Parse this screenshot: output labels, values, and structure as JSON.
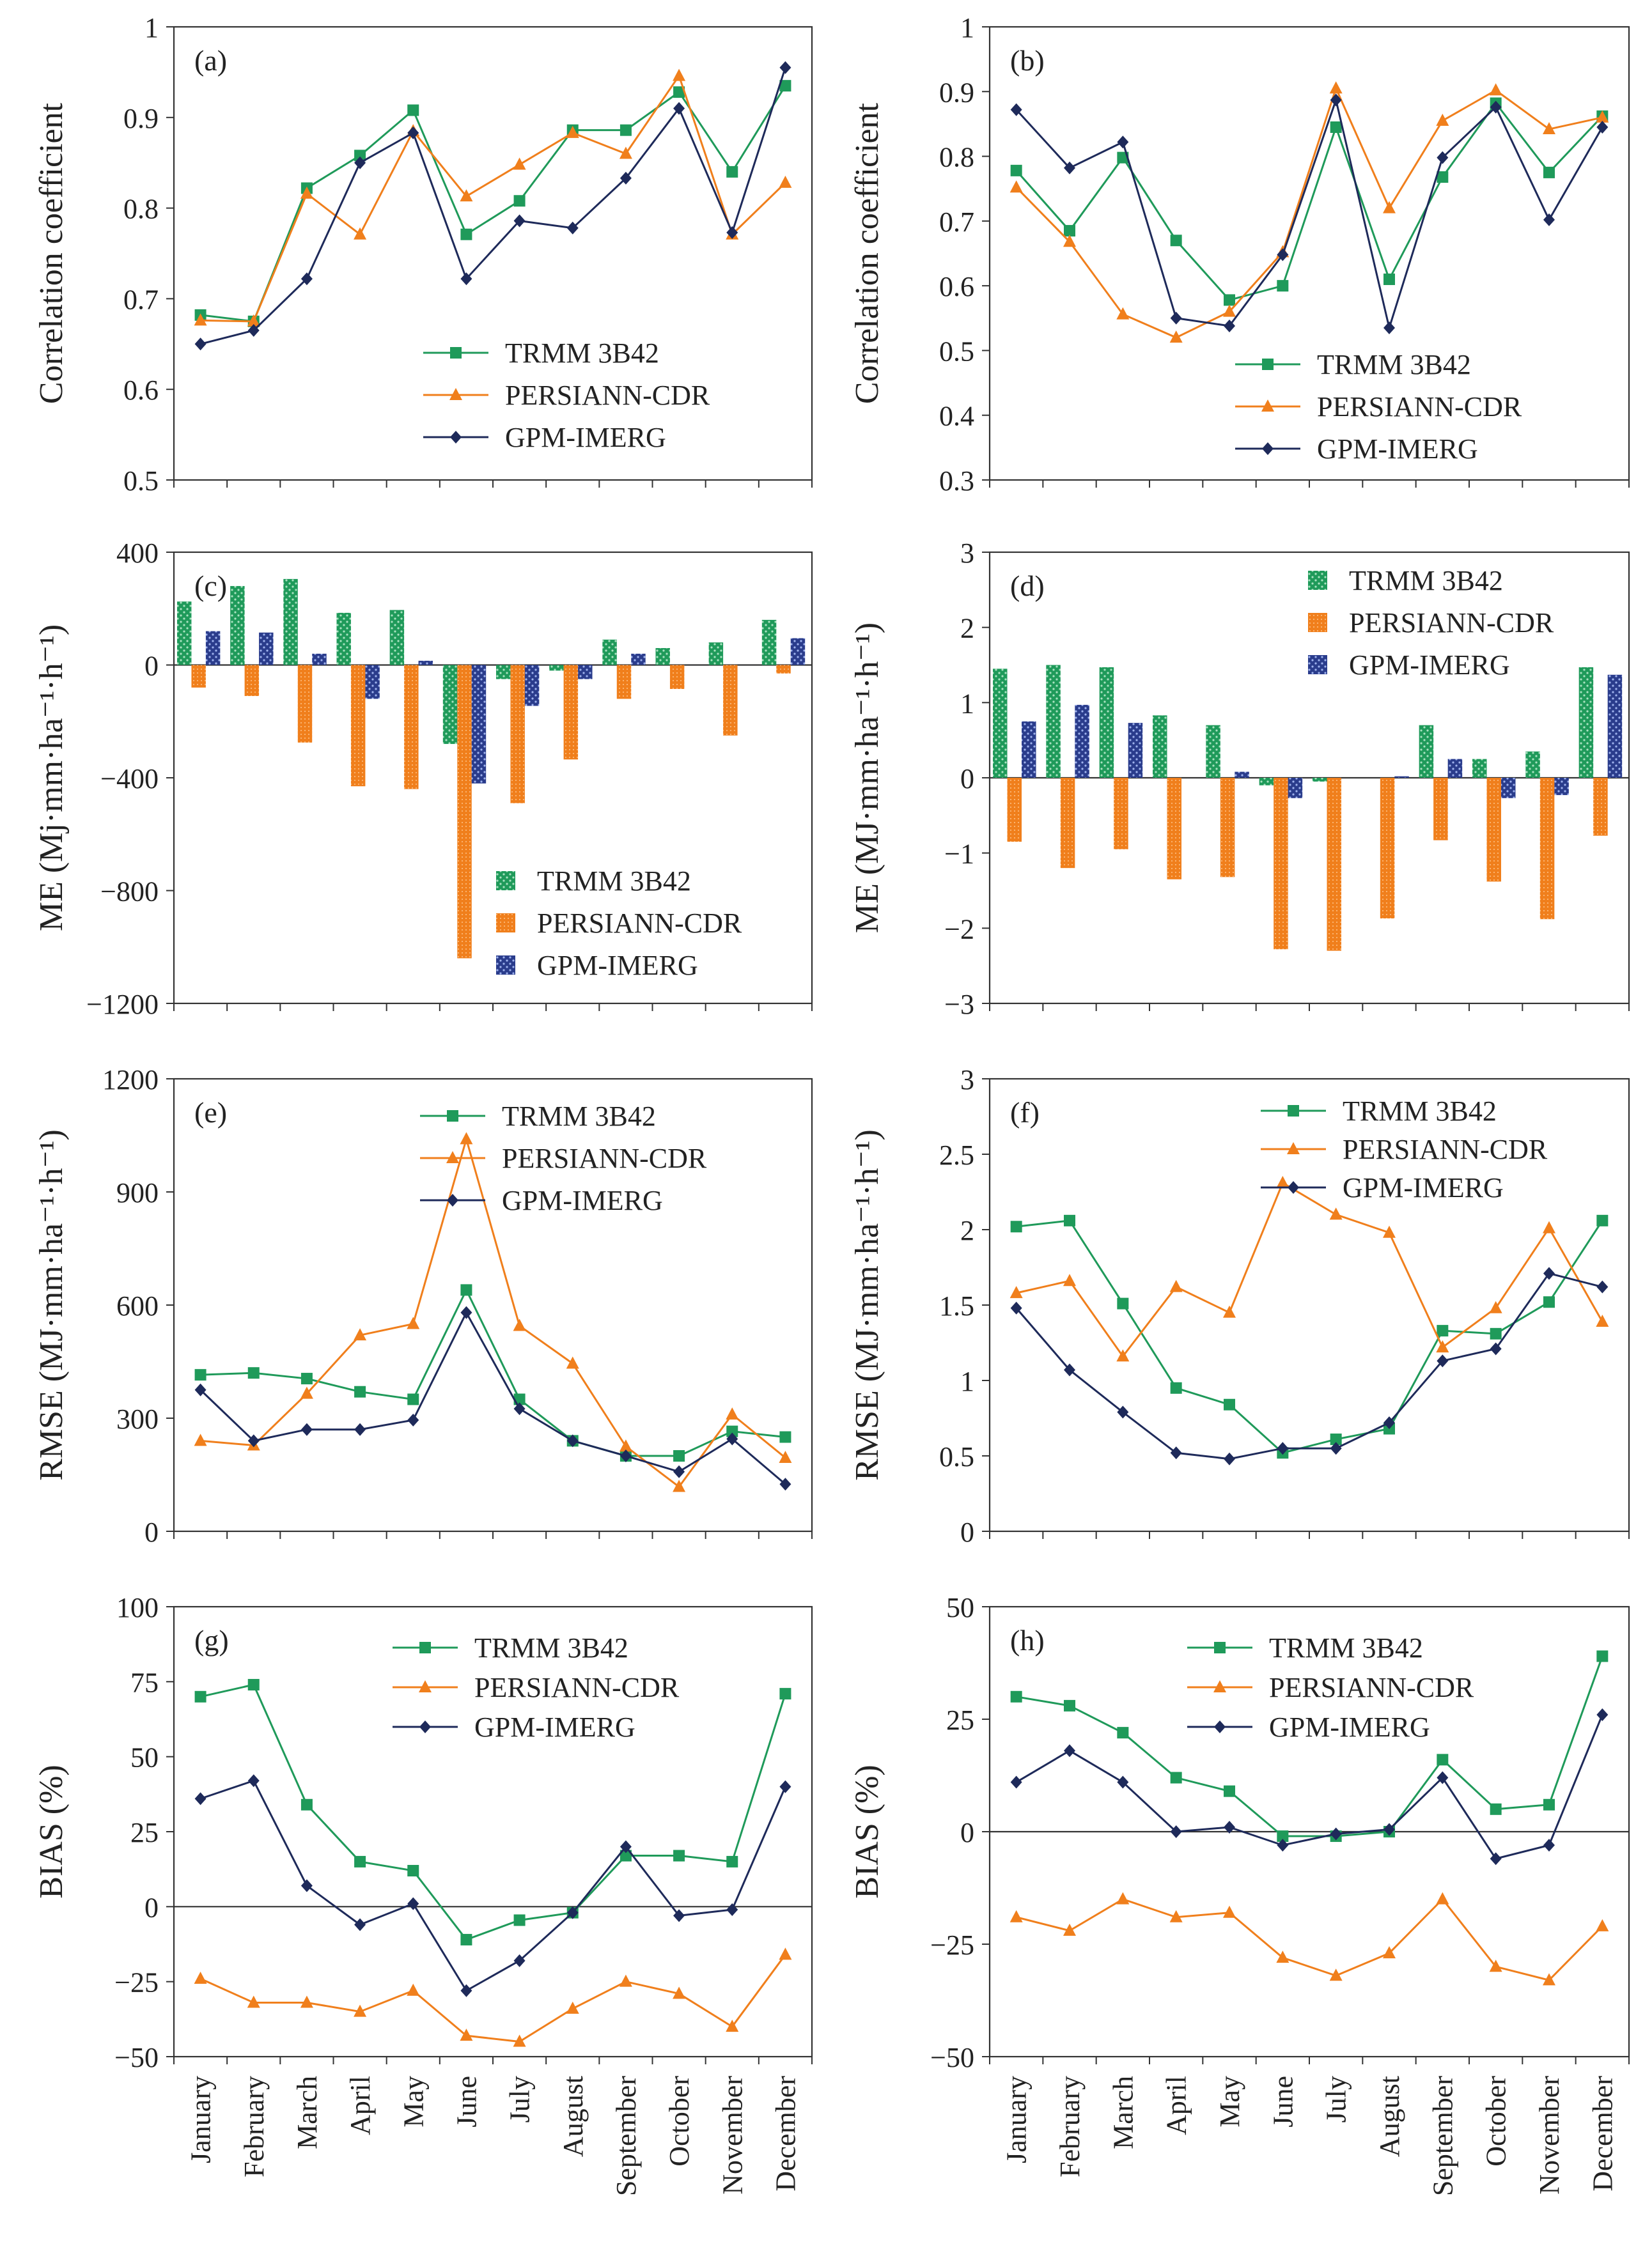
{
  "months": [
    "January",
    "February",
    "March",
    "April",
    "May",
    "June",
    "July",
    "August",
    "September",
    "October",
    "November",
    "December"
  ],
  "series_names": [
    "TRMM 3B42",
    "PERSIANN-CDR",
    "GPM-IMERG"
  ],
  "colors": {
    "trmm": "#1f9a5a",
    "persiann": "#f07f1c",
    "gpm": "#1e2a5a",
    "axis": "#333333"
  },
  "chart_data": [
    {
      "id": "a",
      "type": "line",
      "panel_label": "(a)",
      "ylabel": "Correlation coefficient",
      "ylim": [
        0.5,
        1.0
      ],
      "yticks": [
        0.5,
        0.6,
        0.7,
        0.8,
        0.9,
        1.0
      ],
      "ytick_labels": [
        "0.5",
        "0.6",
        "0.7",
        "0.8",
        "0.9",
        "1"
      ],
      "legend_position": "bottom-right",
      "series": [
        {
          "name": "TRMM 3B42",
          "values": [
            0.682,
            0.675,
            0.822,
            0.858,
            0.908,
            0.771,
            0.808,
            0.886,
            0.886,
            0.928,
            0.84,
            0.935
          ]
        },
        {
          "name": "PERSIANN-CDR",
          "values": [
            0.676,
            0.675,
            0.816,
            0.771,
            0.885,
            0.813,
            0.848,
            0.883,
            0.86,
            0.946,
            0.771,
            0.828
          ]
        },
        {
          "name": "GPM-IMERG",
          "values": [
            0.65,
            0.665,
            0.722,
            0.85,
            0.883,
            0.722,
            0.786,
            0.778,
            0.833,
            0.91,
            0.773,
            0.955
          ]
        }
      ]
    },
    {
      "id": "b",
      "type": "line",
      "panel_label": "(b)",
      "ylabel": "Correlation coefficient",
      "ylim": [
        0.3,
        1.0
      ],
      "yticks": [
        0.3,
        0.4,
        0.5,
        0.6,
        0.7,
        0.8,
        0.9,
        1.0
      ],
      "ytick_labels": [
        "0.3",
        "0.4",
        "0.5",
        "0.6",
        "0.7",
        "0.8",
        "0.9",
        "1"
      ],
      "legend_position": "bottom-right",
      "series": [
        {
          "name": "TRMM 3B42",
          "values": [
            0.778,
            0.685,
            0.798,
            0.67,
            0.578,
            0.6,
            0.845,
            0.61,
            0.768,
            0.882,
            0.775,
            0.862
          ]
        },
        {
          "name": "PERSIANN-CDR",
          "values": [
            0.752,
            0.668,
            0.556,
            0.52,
            0.56,
            0.652,
            0.905,
            0.72,
            0.855,
            0.902,
            0.842,
            0.86
          ]
        },
        {
          "name": "GPM-IMERG",
          "values": [
            0.872,
            0.782,
            0.822,
            0.55,
            0.538,
            0.648,
            0.887,
            0.535,
            0.798,
            0.876,
            0.702,
            0.845
          ]
        }
      ]
    },
    {
      "id": "c",
      "type": "bar",
      "panel_label": "(c)",
      "ylabel": "ME (Mj·mm·ha⁻¹·h⁻¹)",
      "ylim": [
        -1200,
        400
      ],
      "yticks": [
        -1200,
        -800,
        -400,
        0,
        400
      ],
      "ytick_labels": [
        "−1200",
        "−800",
        "−400",
        "0",
        "400"
      ],
      "legend_position": "bottom-right",
      "series": [
        {
          "name": "TRMM 3B42",
          "values": [
            225,
            280,
            305,
            185,
            195,
            -280,
            -50,
            -20,
            90,
            60,
            80,
            160
          ]
        },
        {
          "name": "PERSIANN-CDR",
          "values": [
            -80,
            -110,
            -275,
            -430,
            -440,
            -1040,
            -490,
            -335,
            -120,
            -85,
            -250,
            -30
          ]
        },
        {
          "name": "GPM-IMERG",
          "values": [
            120,
            115,
            40,
            -120,
            15,
            -420,
            -145,
            -50,
            40,
            0,
            0,
            95
          ]
        }
      ]
    },
    {
      "id": "d",
      "type": "bar",
      "panel_label": "(d)",
      "ylabel": "ME (MJ·mm·ha⁻¹·h⁻¹)",
      "ylim": [
        -3,
        3
      ],
      "yticks": [
        -3,
        -2,
        -1,
        0,
        1,
        2,
        3
      ],
      "ytick_labels": [
        "−3",
        "−2",
        "−1",
        "0",
        "1",
        "2",
        "3"
      ],
      "legend_position": "top-right",
      "series": [
        {
          "name": "TRMM 3B42",
          "values": [
            1.45,
            1.5,
            1.47,
            0.83,
            0.7,
            -0.1,
            -0.05,
            0.0,
            0.7,
            0.25,
            0.35,
            1.47
          ]
        },
        {
          "name": "PERSIANN-CDR",
          "values": [
            -0.85,
            -1.2,
            -0.95,
            -1.35,
            -1.32,
            -2.28,
            -2.3,
            -1.87,
            -0.83,
            -1.38,
            -1.88,
            -0.77
          ]
        },
        {
          "name": "GPM-IMERG",
          "values": [
            0.75,
            0.97,
            0.73,
            0.0,
            0.08,
            -0.27,
            0.0,
            0.02,
            0.25,
            -0.27,
            -0.23,
            1.37
          ]
        }
      ]
    },
    {
      "id": "e",
      "type": "line",
      "panel_label": "(e)",
      "ylabel": "RMSE (MJ·mm·ha⁻¹·h⁻¹)",
      "ylim": [
        0,
        1200
      ],
      "yticks": [
        0,
        300,
        600,
        900,
        1200
      ],
      "ytick_labels": [
        "0",
        "300",
        "600",
        "900",
        "1200"
      ],
      "legend_position": "top-right",
      "series": [
        {
          "name": "TRMM 3B42",
          "values": [
            415,
            420,
            405,
            370,
            350,
            640,
            350,
            240,
            200,
            200,
            265,
            250
          ]
        },
        {
          "name": "PERSIANN-CDR",
          "values": [
            240,
            228,
            365,
            520,
            550,
            1040,
            545,
            445,
            225,
            118,
            310,
            195
          ]
        },
        {
          "name": "GPM-IMERG",
          "values": [
            375,
            240,
            270,
            270,
            295,
            580,
            325,
            240,
            200,
            158,
            245,
            125
          ]
        }
      ]
    },
    {
      "id": "f",
      "type": "line",
      "panel_label": "(f)",
      "ylabel": "RMSE (MJ·mm·ha⁻¹·h⁻¹)",
      "ylim": [
        0,
        3
      ],
      "yticks": [
        0,
        0.5,
        1,
        1.5,
        2,
        2.5,
        3
      ],
      "ytick_labels": [
        "0",
        "0.5",
        "1",
        "1.5",
        "2",
        "2.5",
        "3"
      ],
      "legend_position": "top-right",
      "series": [
        {
          "name": "TRMM 3B42",
          "values": [
            2.02,
            2.06,
            1.51,
            0.95,
            0.84,
            0.52,
            0.61,
            0.68,
            1.33,
            1.31,
            1.52,
            2.06
          ]
        },
        {
          "name": "PERSIANN-CDR",
          "values": [
            1.58,
            1.66,
            1.16,
            1.62,
            1.45,
            2.31,
            2.1,
            1.98,
            1.22,
            1.48,
            2.01,
            1.39
          ]
        },
        {
          "name": "GPM-IMERG",
          "values": [
            1.48,
            1.07,
            0.79,
            0.52,
            0.48,
            0.55,
            0.55,
            0.72,
            1.13,
            1.21,
            1.71,
            1.62
          ]
        }
      ]
    },
    {
      "id": "g",
      "type": "line",
      "panel_label": "(g)",
      "ylabel": "BIAS (%)",
      "ylim": [
        -50,
        100
      ],
      "yticks": [
        -50,
        -25,
        0,
        25,
        50,
        75,
        100
      ],
      "ytick_labels": [
        "−50",
        "−25",
        "0",
        "25",
        "50",
        "75",
        "100"
      ],
      "legend_position": "top-right",
      "series": [
        {
          "name": "TRMM 3B42",
          "values": [
            70,
            74,
            34,
            15,
            12,
            -11,
            -4.5,
            -2,
            17,
            17,
            15,
            71
          ]
        },
        {
          "name": "PERSIANN-CDR",
          "values": [
            -24,
            -32,
            -32,
            -35,
            -28,
            -43,
            -45,
            -34,
            -25,
            -29,
            -40,
            -16
          ]
        },
        {
          "name": "GPM-IMERG",
          "values": [
            36,
            42,
            7,
            -6,
            1,
            -28,
            -18,
            -2,
            20,
            -3,
            -1,
            40
          ]
        }
      ]
    },
    {
      "id": "h",
      "type": "line",
      "panel_label": "(h)",
      "ylabel": "BIAS (%)",
      "ylim": [
        -50,
        50
      ],
      "yticks": [
        -50,
        -25,
        0,
        25,
        50
      ],
      "ytick_labels": [
        "−50",
        "−25",
        "0",
        "25",
        "50"
      ],
      "legend_position": "top-right",
      "series": [
        {
          "name": "TRMM 3B42",
          "values": [
            30,
            28,
            22,
            12,
            9,
            -1,
            -1,
            0,
            16,
            5,
            6,
            39
          ]
        },
        {
          "name": "PERSIANN-CDR",
          "values": [
            -19,
            -22,
            -15,
            -19,
            -18,
            -28,
            -32,
            -27,
            -15,
            -30,
            -33,
            -21
          ]
        },
        {
          "name": "GPM-IMERG",
          "values": [
            11,
            18,
            11,
            0,
            1,
            -3,
            -0.5,
            0.5,
            12,
            -6,
            -3,
            26
          ]
        }
      ]
    }
  ]
}
